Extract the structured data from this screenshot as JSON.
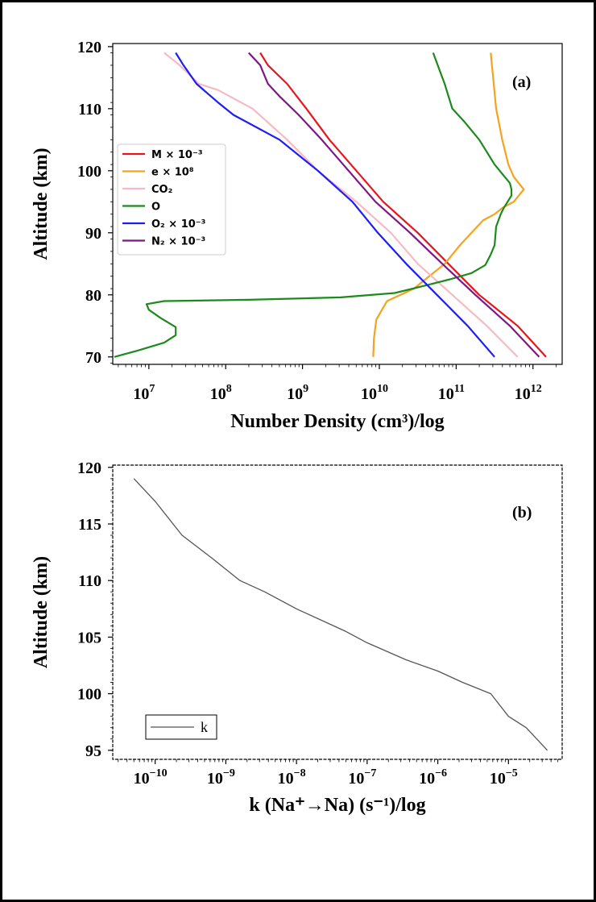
{
  "chart_data": [
    {
      "type": "line",
      "panel_label": "(a)",
      "xlabel": "Number Density (cm³)/log",
      "ylabel": "Altitude (km)",
      "xscale": "log",
      "xlim_log10": [
        6.53,
        12.38
      ],
      "ylim": [
        68.8,
        120.5
      ],
      "xticks": [
        {
          "base": "10",
          "exp": "7"
        },
        {
          "base": "10",
          "exp": "8"
        },
        {
          "base": "10",
          "exp": "9"
        },
        {
          "base": "10",
          "exp": "10"
        },
        {
          "base": "10",
          "exp": "11"
        },
        {
          "base": "10",
          "exp": "12"
        }
      ],
      "yticks": [
        "70",
        "80",
        "90",
        "100",
        "110",
        "120"
      ],
      "legend_position": "middle-left",
      "series": [
        {
          "name": "M × 10⁻³",
          "color": "#e8161c",
          "log10_x": [
            12.17,
            11.8,
            11.3,
            10.9,
            10.5,
            10.05,
            9.7,
            9.35,
            9.05,
            8.8,
            8.55,
            8.45
          ],
          "y": [
            70,
            75,
            80,
            85,
            90,
            95,
            100,
            105,
            110,
            114,
            117,
            119
          ]
        },
        {
          "name": "e × 10⁸",
          "color": "#f5a31d",
          "log10_x": [
            9.92,
            9.93,
            9.96,
            10.1,
            10.45,
            10.55,
            10.85,
            11.05,
            11.2,
            11.35,
            11.5,
            11.6,
            11.75,
            11.88,
            11.75,
            11.68,
            11.6,
            11.52,
            11.45
          ],
          "y": [
            70,
            73,
            76,
            79,
            81,
            82,
            85,
            88,
            90,
            92,
            93,
            94,
            95,
            97,
            99,
            101,
            105,
            110,
            119
          ]
        },
        {
          "name": "CO₂",
          "color": "#f6bac5",
          "log10_x": [
            11.8,
            11.4,
            10.95,
            10.5,
            10.15,
            9.7,
            9.2,
            8.8,
            8.35,
            7.9,
            7.65,
            7.4,
            7.2
          ],
          "y": [
            70,
            75,
            80,
            85,
            90,
            95,
            100,
            105,
            110,
            113,
            114,
            117,
            119
          ]
        },
        {
          "name": "O",
          "color": "#1c8a1c",
          "log10_x": [
            6.55,
            6.85,
            7.2,
            7.35,
            7.35,
            7.15,
            7.0,
            6.97,
            7.2,
            8.3,
            9.5,
            10.2,
            10.6,
            10.92,
            11.2,
            11.38,
            11.45,
            11.5,
            11.52,
            11.58,
            11.62,
            11.72,
            11.72,
            11.7,
            11.6,
            11.5,
            11.3,
            11.1,
            10.95,
            10.85,
            10.7
          ],
          "y": [
            70,
            71,
            72.3,
            73.5,
            74.8,
            76.3,
            77.6,
            78.5,
            79,
            79.2,
            79.6,
            80.3,
            81.5,
            82.5,
            83.5,
            84.8,
            86.5,
            88,
            91,
            93,
            94,
            96,
            97,
            98,
            99.5,
            101,
            105,
            108,
            110,
            114,
            119
          ]
        },
        {
          "name": "O₂ × 10⁻³",
          "color": "#1d1df5",
          "log10_x": [
            11.5,
            11.15,
            10.75,
            10.35,
            9.98,
            9.65,
            9.2,
            8.7,
            8.1,
            7.9,
            7.62,
            7.45,
            7.35
          ],
          "y": [
            70,
            75,
            80,
            85,
            90,
            95,
            100,
            105,
            109,
            111,
            114,
            117,
            119
          ]
        },
        {
          "name": "N₂ × 10⁻³",
          "color": "#7e1686",
          "log10_x": [
            12.08,
            11.7,
            11.25,
            10.82,
            10.4,
            9.95,
            9.6,
            9.25,
            8.95,
            8.7,
            8.55,
            8.45,
            8.3
          ],
          "y": [
            70,
            75,
            80,
            85,
            90,
            95,
            100,
            105,
            109,
            112,
            114,
            117,
            119
          ]
        }
      ]
    },
    {
      "type": "line",
      "panel_label": "(b)",
      "xlabel": "k (Na⁺→Na) (s⁻¹)/log",
      "ylabel": "Altitude (km)",
      "xscale": "log",
      "xlim_log10": [
        -10.6,
        -4.24
      ],
      "ylim": [
        94.2,
        120.2
      ],
      "xticks": [
        {
          "base": "10",
          "exp": "−10"
        },
        {
          "base": "10",
          "exp": "−9"
        },
        {
          "base": "10",
          "exp": "−8"
        },
        {
          "base": "10",
          "exp": "−7"
        },
        {
          "base": "10",
          "exp": "−6"
        },
        {
          "base": "10",
          "exp": "−5"
        }
      ],
      "yticks": [
        "95",
        "100",
        "105",
        "110",
        "115",
        "120"
      ],
      "legend_position": "lower-left",
      "series": [
        {
          "name": "k",
          "color": "#555555",
          "log10_x": [
            -10.3,
            -10.0,
            -9.62,
            -9.2,
            -8.8,
            -8.45,
            -8.0,
            -7.3,
            -7.0,
            -6.45,
            -6.0,
            -5.65,
            -5.25,
            -5.0,
            -4.75,
            -4.45
          ],
          "y": [
            119,
            117,
            114,
            112,
            110,
            109,
            107.5,
            105.5,
            104.5,
            103,
            102,
            101,
            100,
            98,
            97,
            95
          ]
        }
      ]
    }
  ]
}
